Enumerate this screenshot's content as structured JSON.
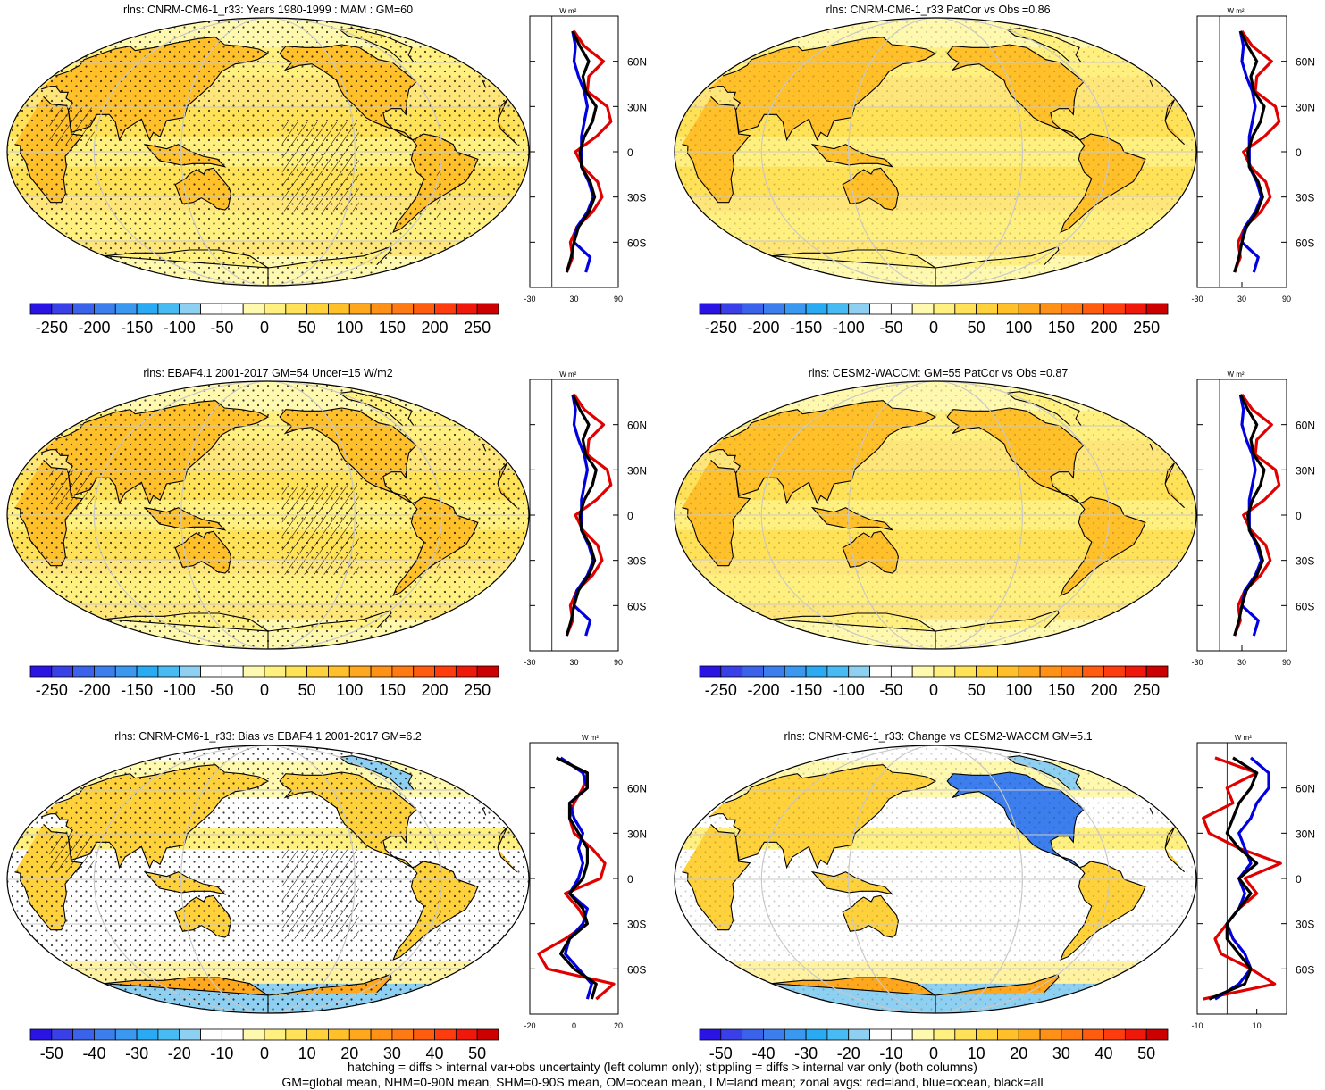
{
  "panels": [
    {
      "title": "rlns: CNRM-CM6-1_r33: Years 1980-1999 : MAM : GM=60",
      "cbar": "main",
      "profile": "main",
      "hatch": true
    },
    {
      "title": "rlns: CNRM-CM6-1_r33 PatCor vs Obs =0.86",
      "cbar": "main",
      "profile": "main",
      "hatch": false
    },
    {
      "title": "rlns: EBAF4.1 2001-2017 GM=54 Uncer=15 W/m2",
      "cbar": "main",
      "profile": "main",
      "hatch": true
    },
    {
      "title": "rlns: CESM2-WACCM: GM=55 PatCor vs Obs =0.87",
      "cbar": "main",
      "profile": "main",
      "hatch": false
    },
    {
      "title": "rlns: CNRM-CM6-1_r33: Bias vs EBAF4.1 2001-2017 GM=6.2",
      "cbar": "diff",
      "profile": "bias",
      "hatch": true
    },
    {
      "title": "rlns: CNRM-CM6-1_r33: Change vs CESM2-WACCM GM=5.1",
      "cbar": "diff",
      "profile": "change",
      "hatch": false
    }
  ],
  "colorbars": {
    "main": {
      "labels": [
        "-250",
        "-200",
        "-150",
        "-100",
        "-50",
        "0",
        "50",
        "100",
        "150",
        "200",
        "250"
      ],
      "colors": [
        "#2a14e4",
        "#3a40e8",
        "#3a62ea",
        "#3c7eee",
        "#3a98f0",
        "#2aaaf2",
        "#48bcf2",
        "#8ed0f2",
        "#ffffff",
        "#ffffff",
        "#fff9b0",
        "#fff080",
        "#ffe258",
        "#ffd23c",
        "#ffc02a",
        "#ffa81e",
        "#ff9216",
        "#ff7a12",
        "#ff5c10",
        "#ff3c0e",
        "#f0180a",
        "#cc0000"
      ]
    },
    "diff": {
      "labels": [
        "-50",
        "-40",
        "-30",
        "-20",
        "-10",
        "0",
        "10",
        "20",
        "30",
        "40",
        "50"
      ],
      "colors": [
        "#2a14e4",
        "#3a40e8",
        "#3a62ea",
        "#3c7eee",
        "#3a98f0",
        "#2aaaf2",
        "#48bcf2",
        "#8ed0f2",
        "#ffffff",
        "#ffffff",
        "#fff9b0",
        "#fff080",
        "#ffe258",
        "#ffd23c",
        "#ffc02a",
        "#ffa81e",
        "#ff9216",
        "#ff7a12",
        "#ff5c10",
        "#ff3c0e",
        "#f0180a",
        "#cc0000"
      ]
    }
  },
  "profile_unit": "W m²",
  "lat_labels": [
    "60N",
    "30N",
    "0",
    "30S",
    "60S"
  ],
  "chart_data": {
    "type": "line",
    "y_axis": "latitude",
    "ylim": [
      -90,
      90
    ],
    "profiles": {
      "main": {
        "xlim": [
          -30,
          90
        ],
        "xticks": [
          "-30",
          "30",
          "90"
        ],
        "lat": [
          -80,
          -70,
          -60,
          -50,
          -40,
          -30,
          -20,
          -10,
          0,
          10,
          20,
          30,
          40,
          50,
          60,
          70,
          80
        ],
        "series": [
          {
            "color": "#e00000",
            "values": [
              20,
              28,
              25,
              34,
              55,
              68,
              62,
              42,
              32,
              60,
              80,
              75,
              48,
              50,
              70,
              44,
              30
            ]
          },
          {
            "color": "#0000e0",
            "values": [
              46,
              52,
              30,
              34,
              48,
              56,
              50,
              40,
              40,
              40,
              44,
              48,
              44,
              36,
              30,
              32,
              28
            ]
          },
          {
            "color": "#000000",
            "values": [
              20,
              26,
              30,
              36,
              50,
              58,
              52,
              40,
              38,
              44,
              55,
              60,
              46,
              42,
              50,
              38,
              28
            ]
          }
        ]
      },
      "bias": {
        "xlim": [
          -20,
          20
        ],
        "xticks": [
          "-20",
          "0",
          "20"
        ],
        "lat": [
          -80,
          -70,
          -60,
          -50,
          -40,
          -30,
          -20,
          -10,
          0,
          10,
          20,
          30,
          40,
          50,
          60,
          70,
          80
        ],
        "series": [
          {
            "color": "#e00000",
            "values": [
              10,
              18,
              -12,
              -16,
              -4,
              6,
              2,
              -4,
              12,
              14,
              8,
              0,
              -2,
              0,
              4,
              6,
              -8
            ]
          },
          {
            "color": "#0000e0",
            "values": [
              6,
              8,
              2,
              -4,
              -2,
              4,
              6,
              -2,
              2,
              4,
              2,
              4,
              0,
              -2,
              6,
              4,
              -6
            ]
          },
          {
            "color": "#000000",
            "values": [
              8,
              10,
              0,
              -6,
              -2,
              6,
              4,
              -2,
              4,
              6,
              6,
              2,
              -2,
              -2,
              6,
              6,
              -8
            ]
          }
        ]
      },
      "change": {
        "xlim": [
          -10,
          20
        ],
        "xticks": [
          "-10",
          "10"
        ],
        "lat": [
          -80,
          -70,
          -60,
          -50,
          -40,
          -30,
          -20,
          -10,
          0,
          10,
          20,
          30,
          40,
          50,
          60,
          70,
          80
        ],
        "series": [
          {
            "color": "#e00000",
            "values": [
              -8,
              16,
              8,
              -2,
              -4,
              0,
              4,
              10,
              6,
              18,
              4,
              -6,
              -8,
              2,
              0,
              10,
              -4
            ]
          },
          {
            "color": "#0000e0",
            "values": [
              -4,
              4,
              8,
              6,
              2,
              0,
              4,
              6,
              4,
              8,
              6,
              4,
              8,
              10,
              14,
              14,
              8
            ]
          },
          {
            "color": "#000000",
            "values": [
              -6,
              6,
              8,
              4,
              0,
              0,
              4,
              8,
              4,
              10,
              4,
              0,
              2,
              4,
              8,
              10,
              2
            ]
          }
        ]
      }
    }
  },
  "footer": {
    "line1": "hatching = diffs > internal var+obs uncertainty (left column only); stippling = diffs > internal var only (both columns)",
    "line2": "GM=global mean, NHM=0-90N mean, SHM=0-90S mean, OM=ocean mean, LM=land mean; zonal avgs: red=land, blue=ocean, black=all"
  }
}
